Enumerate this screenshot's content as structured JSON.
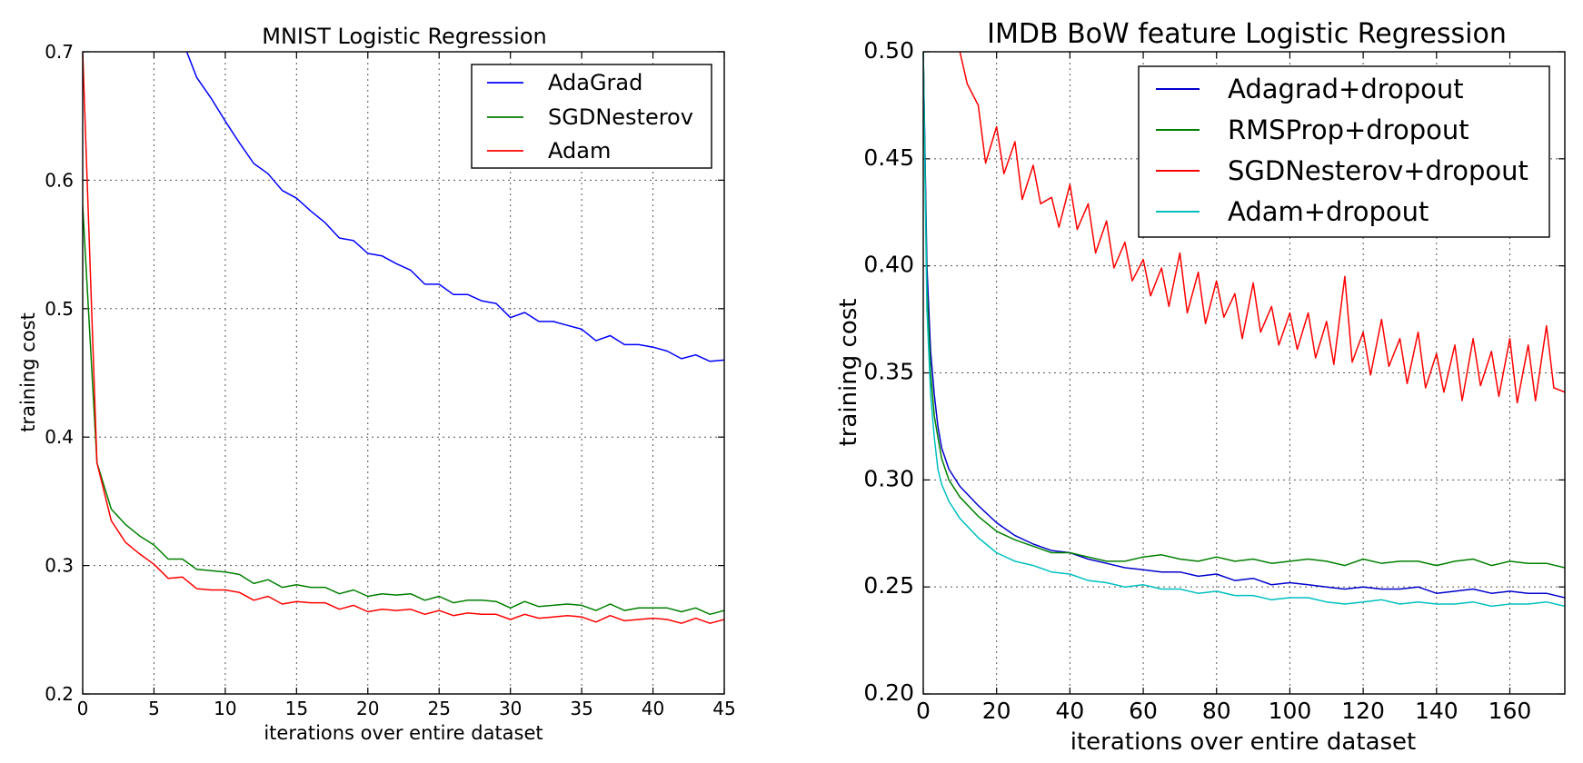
{
  "chart_data": [
    {
      "type": "line",
      "title": "MNIST Logistic Regression",
      "xlabel": "iterations over entire dataset",
      "ylabel": "training cost",
      "xlim": [
        0,
        45
      ],
      "ylim": [
        0.2,
        0.7
      ],
      "xticks": [
        0,
        5,
        10,
        15,
        20,
        25,
        30,
        35,
        40,
        45
      ],
      "yticks": [
        0.2,
        0.3,
        0.4,
        0.5,
        0.6,
        0.7
      ],
      "ytick_labels": [
        "0.2",
        "0.3",
        "0.4",
        "0.5",
        "0.6",
        "0.7"
      ],
      "grid": true,
      "legend_position": "top-right",
      "series": [
        {
          "name": "AdaGrad",
          "color": "#0000ff",
          "x": [
            7.3,
            8,
            9,
            10,
            11,
            12,
            13,
            14,
            15,
            16,
            17,
            18,
            19,
            20,
            21,
            22,
            23,
            24,
            25,
            26,
            27,
            28,
            29,
            30,
            31,
            32,
            33,
            34,
            35,
            36,
            37,
            38,
            39,
            40,
            41,
            42,
            43,
            44,
            45
          ],
          "y": [
            0.7,
            0.68,
            0.664,
            0.646,
            0.629,
            0.613,
            0.605,
            0.592,
            0.586,
            0.576,
            0.567,
            0.555,
            0.553,
            0.543,
            0.541,
            0.535,
            0.53,
            0.519,
            0.519,
            0.511,
            0.511,
            0.506,
            0.504,
            0.493,
            0.497,
            0.49,
            0.49,
            0.487,
            0.484,
            0.475,
            0.479,
            0.472,
            0.472,
            0.47,
            0.467,
            0.461,
            0.464,
            0.459,
            0.46
          ]
        },
        {
          "name": "SGDNesterov",
          "color": "#007f00",
          "x": [
            0,
            1,
            2,
            3,
            4,
            5,
            6,
            7,
            8,
            9,
            10,
            11,
            12,
            13,
            14,
            15,
            16,
            17,
            18,
            19,
            20,
            21,
            22,
            23,
            24,
            25,
            26,
            27,
            28,
            29,
            30,
            31,
            32,
            33,
            34,
            35,
            36,
            37,
            38,
            39,
            40,
            41,
            42,
            43,
            44,
            45
          ],
          "y": [
            0.58,
            0.38,
            0.344,
            0.332,
            0.323,
            0.316,
            0.305,
            0.305,
            0.297,
            0.296,
            0.295,
            0.293,
            0.286,
            0.289,
            0.283,
            0.285,
            0.283,
            0.283,
            0.278,
            0.281,
            0.276,
            0.278,
            0.277,
            0.278,
            0.273,
            0.276,
            0.271,
            0.273,
            0.273,
            0.272,
            0.267,
            0.272,
            0.268,
            0.269,
            0.27,
            0.269,
            0.265,
            0.27,
            0.265,
            0.267,
            0.267,
            0.267,
            0.264,
            0.267,
            0.262,
            0.265
          ]
        },
        {
          "name": "Adam",
          "color": "#ff0000",
          "x": [
            0,
            1,
            2,
            3,
            4,
            5,
            6,
            7,
            8,
            9,
            10,
            11,
            12,
            13,
            14,
            15,
            16,
            17,
            18,
            19,
            20,
            21,
            22,
            23,
            24,
            25,
            26,
            27,
            28,
            29,
            30,
            31,
            32,
            33,
            34,
            35,
            36,
            37,
            38,
            39,
            40,
            41,
            42,
            43,
            44,
            45
          ],
          "y": [
            0.7,
            0.38,
            0.335,
            0.318,
            0.309,
            0.301,
            0.29,
            0.291,
            0.282,
            0.281,
            0.281,
            0.279,
            0.273,
            0.276,
            0.27,
            0.272,
            0.271,
            0.271,
            0.266,
            0.269,
            0.264,
            0.266,
            0.265,
            0.266,
            0.262,
            0.265,
            0.261,
            0.263,
            0.262,
            0.262,
            0.258,
            0.262,
            0.259,
            0.26,
            0.261,
            0.26,
            0.256,
            0.261,
            0.257,
            0.258,
            0.259,
            0.258,
            0.255,
            0.259,
            0.255,
            0.258
          ]
        }
      ]
    },
    {
      "type": "line",
      "title": "IMDB BoW feature Logistic Regression",
      "xlabel": "iterations over entire dataset",
      "ylabel": "training cost",
      "xlim": [
        0,
        175
      ],
      "ylim": [
        0.2,
        0.5
      ],
      "xticks": [
        0,
        20,
        40,
        60,
        80,
        100,
        120,
        140,
        160
      ],
      "yticks": [
        0.2,
        0.25,
        0.3,
        0.35,
        0.4,
        0.45,
        0.5
      ],
      "ytick_labels": [
        "0.20",
        "0.25",
        "0.30",
        "0.35",
        "0.40",
        "0.45",
        "0.50"
      ],
      "grid": true,
      "legend_position": "top-right",
      "series": [
        {
          "name": "Adagrad+dropout",
          "color": "#0000cc",
          "x": [
            0,
            1,
            2,
            3,
            4,
            5,
            7,
            10,
            15,
            20,
            25,
            30,
            35,
            40,
            45,
            50,
            55,
            60,
            65,
            70,
            75,
            80,
            85,
            90,
            95,
            100,
            105,
            110,
            115,
            120,
            125,
            130,
            135,
            140,
            145,
            150,
            155,
            160,
            165,
            170,
            175
          ],
          "y": [
            0.5,
            0.4,
            0.36,
            0.34,
            0.325,
            0.315,
            0.305,
            0.297,
            0.288,
            0.28,
            0.274,
            0.27,
            0.267,
            0.266,
            0.263,
            0.261,
            0.259,
            0.258,
            0.257,
            0.257,
            0.255,
            0.256,
            0.253,
            0.254,
            0.251,
            0.252,
            0.251,
            0.25,
            0.249,
            0.25,
            0.249,
            0.249,
            0.25,
            0.247,
            0.248,
            0.249,
            0.247,
            0.248,
            0.247,
            0.247,
            0.245
          ]
        },
        {
          "name": "RMSProp+dropout",
          "color": "#007f00",
          "x": [
            0,
            1,
            2,
            3,
            4,
            5,
            7,
            10,
            15,
            20,
            25,
            30,
            35,
            40,
            45,
            50,
            55,
            60,
            65,
            70,
            75,
            80,
            85,
            90,
            95,
            100,
            105,
            110,
            115,
            120,
            125,
            130,
            135,
            140,
            145,
            150,
            155,
            160,
            165,
            170,
            175
          ],
          "y": [
            0.5,
            0.39,
            0.35,
            0.33,
            0.32,
            0.31,
            0.3,
            0.292,
            0.283,
            0.276,
            0.272,
            0.269,
            0.266,
            0.266,
            0.264,
            0.262,
            0.262,
            0.264,
            0.265,
            0.263,
            0.262,
            0.264,
            0.262,
            0.263,
            0.261,
            0.262,
            0.263,
            0.262,
            0.26,
            0.263,
            0.261,
            0.262,
            0.262,
            0.26,
            0.262,
            0.263,
            0.26,
            0.262,
            0.261,
            0.261,
            0.259
          ]
        },
        {
          "name": "SGDNesterov+dropout",
          "color": "#ff0000",
          "x": [
            10,
            12,
            15,
            17,
            20,
            22,
            25,
            27,
            30,
            32,
            35,
            37,
            40,
            42,
            45,
            47,
            50,
            52,
            55,
            57,
            60,
            62,
            65,
            67,
            70,
            72,
            75,
            77,
            80,
            82,
            85,
            87,
            90,
            92,
            95,
            97,
            100,
            102,
            105,
            107,
            110,
            112,
            115,
            117,
            120,
            122,
            125,
            127,
            130,
            132,
            135,
            137,
            140,
            142,
            145,
            147,
            150,
            152,
            155,
            157,
            160,
            162,
            165,
            167,
            170,
            172,
            175
          ],
          "y": [
            0.5,
            0.485,
            0.475,
            0.448,
            0.465,
            0.443,
            0.458,
            0.431,
            0.447,
            0.429,
            0.432,
            0.418,
            0.438,
            0.417,
            0.429,
            0.406,
            0.421,
            0.399,
            0.411,
            0.393,
            0.403,
            0.386,
            0.399,
            0.381,
            0.406,
            0.378,
            0.397,
            0.373,
            0.393,
            0.376,
            0.387,
            0.366,
            0.392,
            0.369,
            0.381,
            0.363,
            0.378,
            0.361,
            0.378,
            0.357,
            0.374,
            0.354,
            0.395,
            0.355,
            0.369,
            0.349,
            0.375,
            0.353,
            0.366,
            0.345,
            0.369,
            0.343,
            0.359,
            0.341,
            0.363,
            0.337,
            0.366,
            0.344,
            0.36,
            0.339,
            0.366,
            0.336,
            0.363,
            0.337,
            0.372,
            0.343,
            0.341
          ]
        },
        {
          "name": "Adam+dropout",
          "color": "#00bfbf",
          "x": [
            0,
            1,
            2,
            3,
            4,
            5,
            7,
            10,
            15,
            20,
            25,
            30,
            35,
            40,
            45,
            50,
            55,
            60,
            65,
            70,
            75,
            80,
            85,
            90,
            95,
            100,
            105,
            110,
            115,
            120,
            125,
            130,
            135,
            140,
            145,
            150,
            155,
            160,
            165,
            170,
            175
          ],
          "y": [
            0.5,
            0.38,
            0.34,
            0.32,
            0.305,
            0.298,
            0.29,
            0.282,
            0.273,
            0.266,
            0.262,
            0.26,
            0.257,
            0.256,
            0.253,
            0.252,
            0.25,
            0.251,
            0.249,
            0.249,
            0.247,
            0.248,
            0.246,
            0.246,
            0.244,
            0.245,
            0.245,
            0.243,
            0.242,
            0.243,
            0.244,
            0.242,
            0.243,
            0.242,
            0.242,
            0.243,
            0.241,
            0.242,
            0.242,
            0.243,
            0.241
          ]
        }
      ]
    }
  ]
}
